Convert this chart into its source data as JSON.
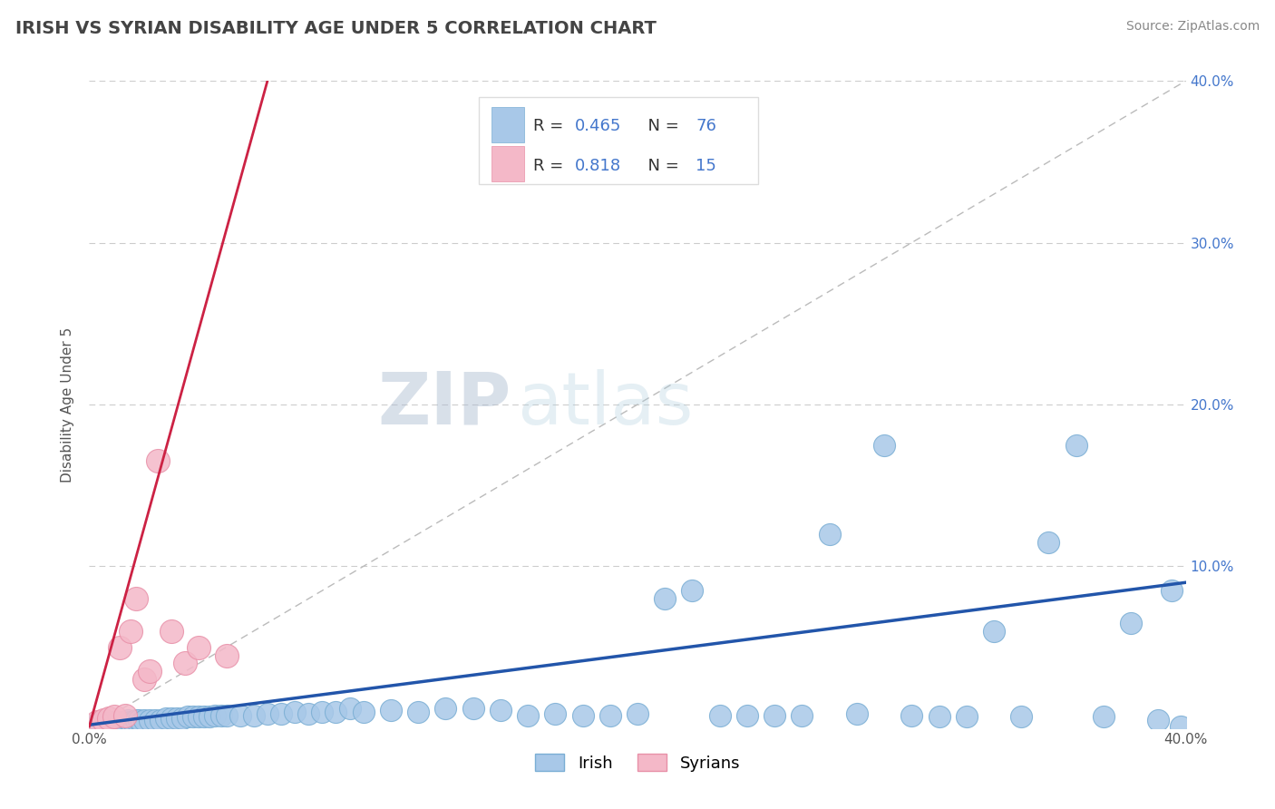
{
  "title": "IRISH VS SYRIAN DISABILITY AGE UNDER 5 CORRELATION CHART",
  "source": "Source: ZipAtlas.com",
  "ylabel": "Disability Age Under 5",
  "xlim": [
    0.0,
    0.4
  ],
  "ylim": [
    0.0,
    0.4
  ],
  "xticks": [
    0.0,
    0.1,
    0.2,
    0.3,
    0.4
  ],
  "yticks": [
    0.0,
    0.1,
    0.2,
    0.3,
    0.4
  ],
  "xtick_labels_left": [
    "0.0%",
    "",
    "",
    "",
    "40.0%"
  ],
  "ytick_labels_right": [
    "",
    "10.0%",
    "20.0%",
    "30.0%",
    "40.0%"
  ],
  "irish_color": "#a8c8e8",
  "irish_edge_color": "#7aaed4",
  "syrian_color": "#f4b8c8",
  "syrian_edge_color": "#e890a8",
  "irish_trend_color": "#2255aa",
  "syrian_trend_color": "#cc2244",
  "irish_R": 0.465,
  "irish_N": 76,
  "syrian_R": 0.818,
  "syrian_N": 15,
  "legend_label_irish": "Irish",
  "legend_label_syrian": "Syrians",
  "watermark_zip": "ZIP",
  "watermark_atlas": "atlas",
  "background_color": "#ffffff",
  "title_color": "#444444",
  "source_color": "#888888",
  "right_tick_color": "#4477cc",
  "legend_R_color": "#4477cc",
  "legend_N_color": "#4477cc",
  "legend_text_color": "#333333",
  "irish_x": [
    0.002,
    0.003,
    0.004,
    0.005,
    0.005,
    0.006,
    0.007,
    0.008,
    0.009,
    0.01,
    0.011,
    0.012,
    0.013,
    0.014,
    0.015,
    0.016,
    0.017,
    0.018,
    0.019,
    0.02,
    0.022,
    0.024,
    0.026,
    0.028,
    0.03,
    0.032,
    0.034,
    0.036,
    0.038,
    0.04,
    0.042,
    0.044,
    0.046,
    0.048,
    0.05,
    0.055,
    0.06,
    0.065,
    0.07,
    0.075,
    0.08,
    0.085,
    0.09,
    0.095,
    0.1,
    0.11,
    0.12,
    0.13,
    0.14,
    0.15,
    0.16,
    0.17,
    0.18,
    0.19,
    0.2,
    0.21,
    0.22,
    0.23,
    0.24,
    0.25,
    0.26,
    0.27,
    0.28,
    0.29,
    0.3,
    0.31,
    0.32,
    0.33,
    0.34,
    0.35,
    0.36,
    0.37,
    0.38,
    0.39,
    0.395,
    0.398
  ],
  "irish_y": [
    0.002,
    0.002,
    0.003,
    0.003,
    0.004,
    0.003,
    0.003,
    0.004,
    0.003,
    0.004,
    0.004,
    0.003,
    0.004,
    0.005,
    0.004,
    0.004,
    0.005,
    0.005,
    0.004,
    0.005,
    0.005,
    0.005,
    0.005,
    0.006,
    0.006,
    0.006,
    0.006,
    0.007,
    0.007,
    0.007,
    0.007,
    0.007,
    0.008,
    0.008,
    0.008,
    0.008,
    0.008,
    0.009,
    0.009,
    0.01,
    0.009,
    0.01,
    0.01,
    0.012,
    0.01,
    0.011,
    0.01,
    0.012,
    0.012,
    0.011,
    0.008,
    0.009,
    0.008,
    0.008,
    0.009,
    0.08,
    0.085,
    0.008,
    0.008,
    0.008,
    0.008,
    0.12,
    0.009,
    0.175,
    0.008,
    0.007,
    0.007,
    0.06,
    0.007,
    0.115,
    0.175,
    0.007,
    0.065,
    0.005,
    0.085,
    0.001
  ],
  "syrian_x": [
    0.003,
    0.005,
    0.007,
    0.009,
    0.011,
    0.013,
    0.015,
    0.017,
    0.02,
    0.022,
    0.025,
    0.03,
    0.035,
    0.04,
    0.05
  ],
  "syrian_y": [
    0.004,
    0.005,
    0.006,
    0.007,
    0.05,
    0.008,
    0.06,
    0.08,
    0.03,
    0.035,
    0.165,
    0.06,
    0.04,
    0.05,
    0.045
  ]
}
